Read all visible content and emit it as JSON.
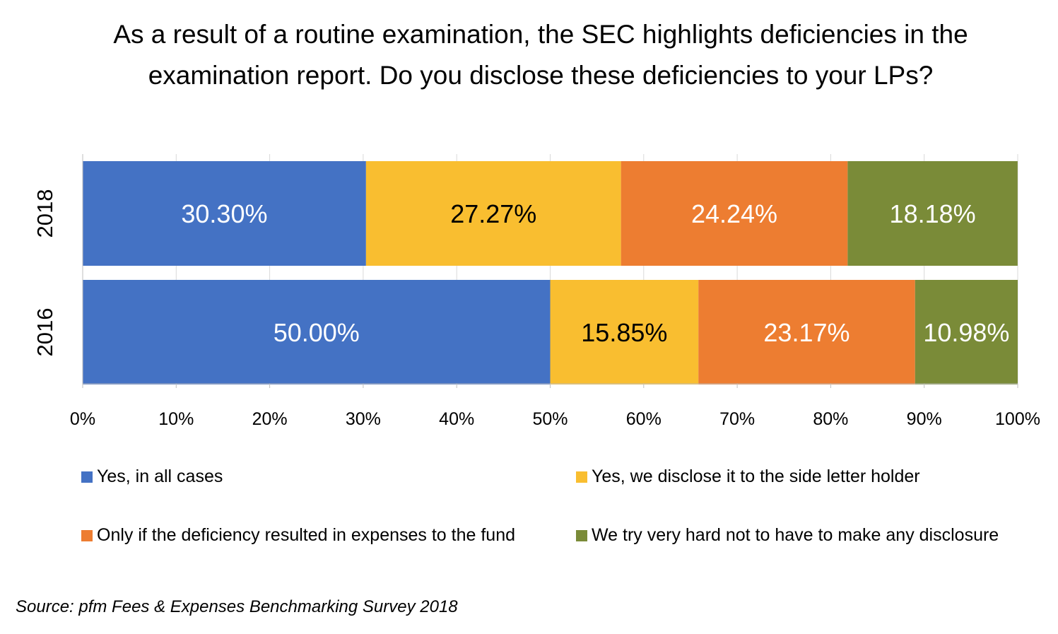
{
  "chart_data": {
    "type": "bar",
    "orientation": "horizontal",
    "stacked": true,
    "title": "As a result of a routine examination, the SEC highlights deficiencies in the examination report. Do you disclose these deficiencies to your LPs?",
    "categories": [
      "2018",
      "2016"
    ],
    "series": [
      {
        "name": "Yes, in all cases",
        "color": "#4472C4",
        "label_color": "#ffffff",
        "values": [
          30.3,
          50.0
        ],
        "labels": [
          "30.30%",
          "50.00%"
        ]
      },
      {
        "name": "Yes, we disclose it to the side letter holder",
        "color": "#F9BE30",
        "label_color": "#000000",
        "values": [
          27.27,
          15.85
        ],
        "labels": [
          "27.27%",
          "15.85%"
        ]
      },
      {
        "name": "Only if the deficiency resulted in expenses to the fund",
        "color": "#ED7D31",
        "label_color": "#ffffff",
        "values": [
          24.24,
          23.17
        ],
        "labels": [
          "24.24%",
          "23.17%"
        ]
      },
      {
        "name": "We try very hard not to have to make any disclosure",
        "color": "#7A8B38",
        "label_color": "#ffffff",
        "values": [
          18.18,
          10.98
        ],
        "labels": [
          "18.18%",
          "10.98%"
        ]
      }
    ],
    "xlim": [
      0,
      100
    ],
    "x_ticks": [
      "0%",
      "10%",
      "20%",
      "30%",
      "40%",
      "50%",
      "60%",
      "70%",
      "80%",
      "90%",
      "100%"
    ],
    "xlabel": "",
    "ylabel": "",
    "grid": true,
    "legend": "bottom"
  },
  "source": "Source: pfm Fees & Expenses Benchmarking Survey 2018"
}
